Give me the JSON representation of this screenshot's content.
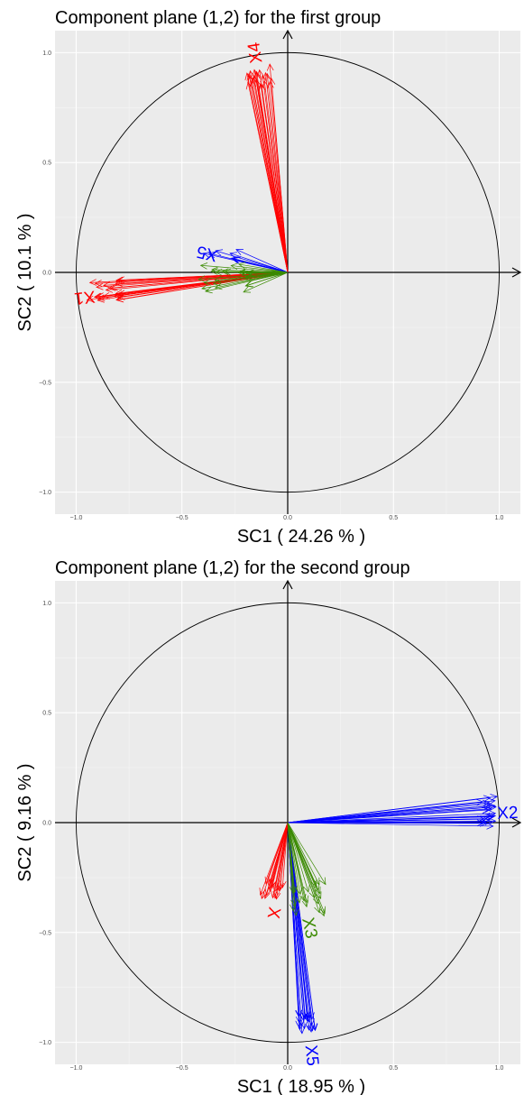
{
  "chart_data": [
    {
      "type": "scatter",
      "title": "Component plane (1,2) for the first group",
      "xlabel": "SC1 ( 24.26 % )",
      "ylabel": "SC2 ( 10.1 % )",
      "xlim": [
        -1.1,
        1.1
      ],
      "ylim": [
        -1.1,
        1.1
      ],
      "xticks": [
        -1.0,
        -0.5,
        0.0,
        0.5,
        1.0
      ],
      "yticks": [
        -1.0,
        -0.5,
        0.0,
        0.5,
        1.0
      ],
      "xtick_labels": [
        "−1.0",
        "−0.5",
        "0.0",
        "0.5",
        "1.0"
      ],
      "ytick_labels": [
        "−1.0",
        "−0.5",
        "0.0",
        "0.5",
        "1.0"
      ],
      "grid": true,
      "unit_circle": true,
      "series": [
        {
          "name": "X1",
          "color": "#ff0000",
          "label_at": [
            -0.96,
            -0.11
          ],
          "x_range": [
            -0.95,
            -0.8
          ],
          "y_range": [
            -0.13,
            -0.03
          ],
          "n_arrows": 25
        },
        {
          "name": "X4",
          "color": "#ff0000",
          "label_at": [
            -0.15,
            1.0
          ],
          "x_range": [
            -0.2,
            -0.07
          ],
          "y_range": [
            0.85,
            0.95
          ],
          "n_arrows": 22
        },
        {
          "name": "X5",
          "color": "#0000ff",
          "label_at": [
            -0.38,
            0.09
          ],
          "x_range": [
            -0.4,
            -0.2
          ],
          "y_range": [
            0.06,
            0.12
          ],
          "n_arrows": 8
        },
        {
          "name": "",
          "color": "#3a8a00",
          "label_at": [
            -0.35,
            -0.04
          ],
          "x_range": [
            -0.43,
            -0.17
          ],
          "y_range": [
            -0.09,
            0.04
          ],
          "n_arrows": 25
        }
      ]
    },
    {
      "type": "scatter",
      "title": "Component plane (1,2) for the second group",
      "xlabel": "SC1 ( 18.95 % )",
      "ylabel": "SC2 ( 9.16 % )",
      "xlim": [
        -1.1,
        1.1
      ],
      "ylim": [
        -1.1,
        1.1
      ],
      "xticks": [
        -1.0,
        -0.5,
        0.0,
        0.5,
        1.0
      ],
      "yticks": [
        -1.0,
        -0.5,
        0.0,
        0.5,
        1.0
      ],
      "xtick_labels": [
        "−1.0",
        "−0.5",
        "0.0",
        "0.5",
        "1.0"
      ],
      "ytick_labels": [
        "−1.0",
        "−0.5",
        "0.0",
        "0.5",
        "1.0"
      ],
      "grid": true,
      "unit_circle": true,
      "series": [
        {
          "name": "X2",
          "color": "#0000ff",
          "label_at": [
            1.04,
            0.04
          ],
          "x_range": [
            0.92,
            0.99
          ],
          "y_range": [
            -0.02,
            0.13
          ],
          "n_arrows": 25
        },
        {
          "name": "X5",
          "color": "#0000ff",
          "label_at": [
            0.11,
            -1.06
          ],
          "x_range": [
            0.05,
            0.14
          ],
          "y_range": [
            -0.96,
            -0.88
          ],
          "n_arrows": 22
        },
        {
          "name": "X",
          "color": "#ff0000",
          "label_at": [
            -0.07,
            -0.41
          ],
          "x_range": [
            -0.13,
            -0.02
          ],
          "y_range": [
            -0.35,
            -0.26
          ],
          "n_arrows": 18
        },
        {
          "name": "X3",
          "color": "#3a8a00",
          "label_at": [
            0.1,
            -0.48
          ],
          "x_range": [
            0.02,
            0.19
          ],
          "y_range": [
            -0.43,
            -0.28
          ],
          "n_arrows": 22
        }
      ]
    }
  ]
}
